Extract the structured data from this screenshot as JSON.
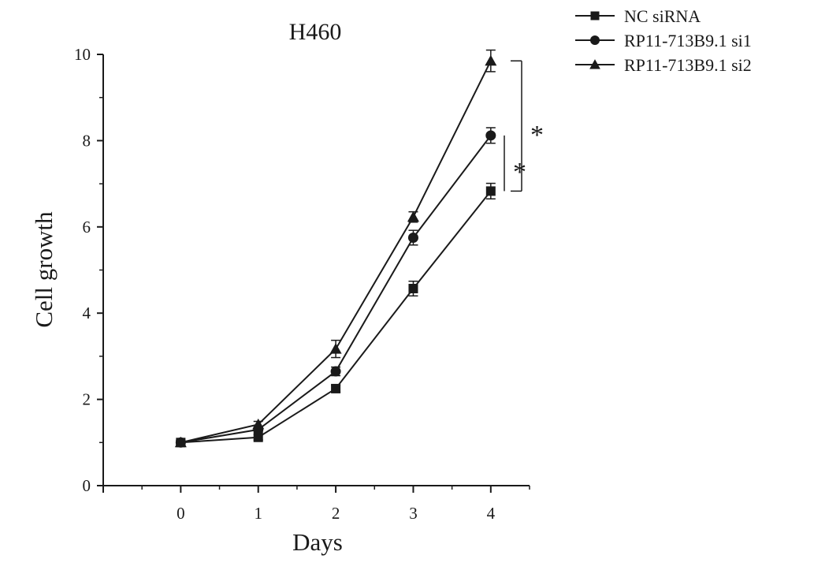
{
  "chart_data": {
    "type": "line",
    "title": "H460",
    "xlabel": "Days",
    "ylabel": "Cell growth",
    "x": [
      0,
      1,
      2,
      3,
      4
    ],
    "xticks": [
      "0",
      "1",
      "2",
      "3",
      "4"
    ],
    "yticks": [
      "0",
      "2",
      "4",
      "6",
      "8",
      "10"
    ],
    "xlim": [
      -1,
      4.5
    ],
    "ylim": [
      0,
      10
    ],
    "grid": false,
    "legend_position": "top-right",
    "series": [
      {
        "name": "NC siRNA",
        "marker": "square",
        "values": [
          1.0,
          1.12,
          2.25,
          4.57,
          6.83
        ],
        "errors": [
          0.05,
          0.06,
          0.08,
          0.17,
          0.18
        ]
      },
      {
        "name": "RP11-713B9.1 si1",
        "marker": "circle",
        "values": [
          1.0,
          1.3,
          2.65,
          5.75,
          8.12
        ],
        "errors": [
          0.05,
          0.06,
          0.1,
          0.17,
          0.18
        ]
      },
      {
        "name": "RP11-713B9.1 si2",
        "marker": "triangle",
        "values": [
          1.0,
          1.42,
          3.17,
          6.23,
          9.85
        ],
        "errors": [
          0.05,
          0.07,
          0.2,
          0.12,
          0.25
        ]
      }
    ],
    "annotations": [
      {
        "text": "*",
        "between": [
          "NC siRNA",
          "RP11-713B9.1 si1"
        ],
        "at_x": 4
      },
      {
        "text": "*",
        "between": [
          "NC siRNA",
          "RP11-713B9.1 si2"
        ],
        "at_x": 4
      }
    ],
    "line_color": "#1a1a1a"
  }
}
